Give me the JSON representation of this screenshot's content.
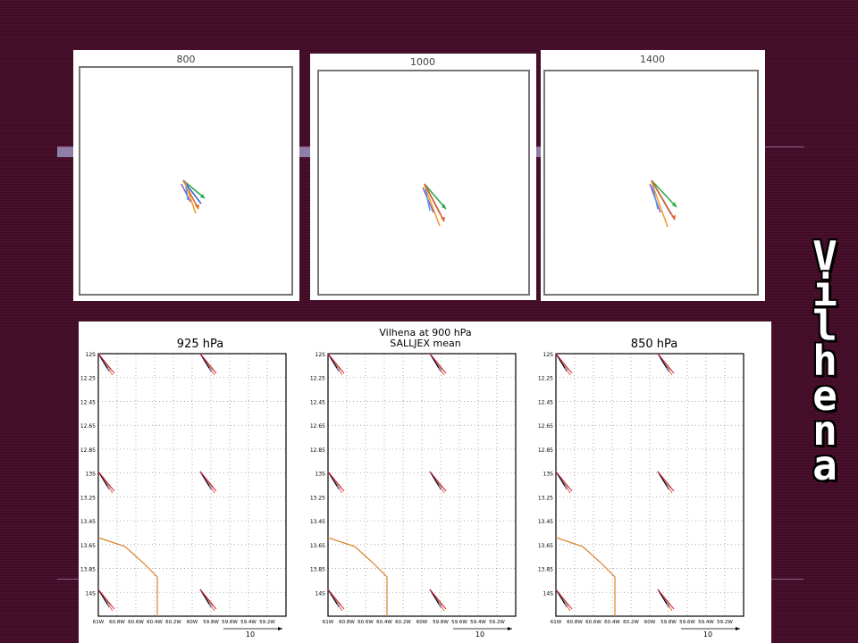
{
  "side_title": [
    "V",
    "i",
    "l",
    "h",
    "e",
    "n",
    "a"
  ],
  "top_panels": [
    {
      "label": "800"
    },
    {
      "label": "1000"
    },
    {
      "label": "1400"
    }
  ],
  "bottom": {
    "title_line1": "Vilhena at 900 hPa",
    "title_line2": "SALLJEX mean",
    "panels": [
      {
        "title": "925 hPa"
      },
      {
        "title": ""
      },
      {
        "title": "850 hPa"
      }
    ],
    "y_ticks": [
      "12S",
      "12.25",
      "12.45",
      "12.65",
      "12.85",
      "13S",
      "13.25",
      "13.45",
      "13.65",
      "13.85",
      "14S"
    ],
    "x_ticks": [
      "61W",
      "60.8W",
      "60.6W",
      "60.4W",
      "60.2W",
      "60W",
      "59.8W",
      "59.6W",
      "59.4W",
      "59.2W"
    ],
    "scale_label": "10"
  },
  "colors": {
    "background": "#4a0f2c",
    "terrain_line": "#d9822b"
  }
}
